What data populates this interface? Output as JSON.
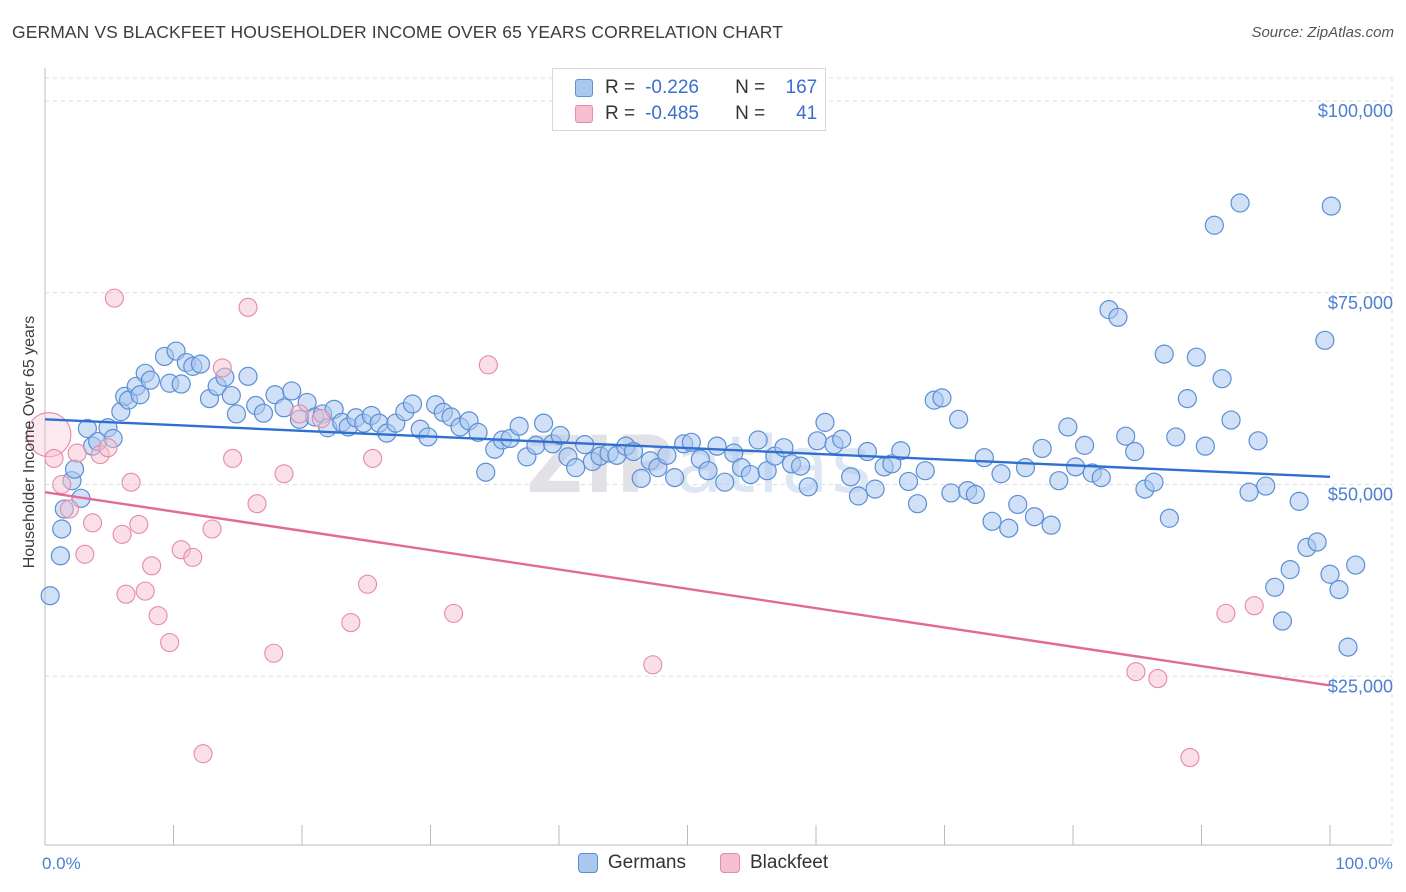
{
  "title": "GERMAN VS BLACKFEET HOUSEHOLDER INCOME OVER 65 YEARS CORRELATION CHART",
  "source": "Source: ZipAtlas.com",
  "watermark": "ZIPatlas",
  "colors": {
    "german_fill": "#a9c7ef",
    "german_stroke": "#5b8fd6",
    "german_line": "#2f6fcf",
    "blackfeet_fill": "#f6bfd0",
    "blackfeet_stroke": "#e58aa8",
    "blackfeet_line": "#e26a96",
    "tick_label": "#4a7fd1",
    "grid": "#dddddd"
  },
  "legend": {
    "rows": [
      {
        "r_label": "R =",
        "r_value": "-0.226",
        "n_label": "N =",
        "n_value": "167"
      },
      {
        "r_label": "R =",
        "r_value": "-0.485",
        "n_label": "N =",
        "n_value": "41"
      }
    ]
  },
  "bottom_legend": [
    "Germans",
    "Blackfeet"
  ],
  "chart_data": {
    "type": "scatter",
    "title": "GERMAN VS BLACKFEET HOUSEHOLDER INCOME OVER 65 YEARS CORRELATION CHART",
    "xlabel": "",
    "ylabel": "Householder Income Over 65 years",
    "xlim": [
      0,
      100
    ],
    "ylim": [
      3000,
      103000
    ],
    "x_tick_labels": [
      "0.0%",
      "100.0%"
    ],
    "y_ticks": [
      25000,
      50000,
      75000,
      100000
    ],
    "y_tick_labels": [
      "$25,000",
      "$50,000",
      "$75,000",
      "$100,000"
    ],
    "grid": true,
    "legend_position": "top-center",
    "series": [
      {
        "name": "Germans",
        "r": -0.226,
        "n": 167,
        "trend": {
          "x": [
            0,
            100
          ],
          "y": [
            58500,
            51000
          ]
        },
        "points": [
          [
            0.4,
            35500
          ],
          [
            1.2,
            40700
          ],
          [
            1.3,
            44200
          ],
          [
            1.5,
            46800
          ],
          [
            2.1,
            50500
          ],
          [
            2.3,
            52000
          ],
          [
            2.8,
            48200
          ],
          [
            3.3,
            57300
          ],
          [
            3.7,
            55000
          ],
          [
            4.1,
            55600
          ],
          [
            4.9,
            57400
          ],
          [
            5.3,
            56000
          ],
          [
            5.9,
            59500
          ],
          [
            6.2,
            61500
          ],
          [
            6.5,
            61000
          ],
          [
            7.1,
            62800
          ],
          [
            7.4,
            61700
          ],
          [
            7.8,
            64500
          ],
          [
            8.2,
            63600
          ],
          [
            9.3,
            66700
          ],
          [
            9.7,
            63200
          ],
          [
            10.2,
            67400
          ],
          [
            10.6,
            63100
          ],
          [
            11.0,
            65900
          ],
          [
            11.5,
            65400
          ],
          [
            12.1,
            65700
          ],
          [
            12.8,
            61200
          ],
          [
            13.4,
            62800
          ],
          [
            14.0,
            64000
          ],
          [
            14.5,
            61600
          ],
          [
            14.9,
            59200
          ],
          [
            15.8,
            64100
          ],
          [
            16.4,
            60300
          ],
          [
            17.0,
            59300
          ],
          [
            17.9,
            61700
          ],
          [
            18.6,
            60000
          ],
          [
            19.2,
            62200
          ],
          [
            19.8,
            58500
          ],
          [
            20.4,
            60700
          ],
          [
            21.0,
            58800
          ],
          [
            21.6,
            59200
          ],
          [
            22.0,
            57400
          ],
          [
            22.5,
            59800
          ],
          [
            23.1,
            58100
          ],
          [
            23.6,
            57500
          ],
          [
            24.2,
            58700
          ],
          [
            24.8,
            58000
          ],
          [
            25.4,
            59000
          ],
          [
            26.0,
            58000
          ],
          [
            26.6,
            56700
          ],
          [
            27.3,
            58000
          ],
          [
            28.0,
            59500
          ],
          [
            28.6,
            60500
          ],
          [
            29.2,
            57200
          ],
          [
            29.8,
            56200
          ],
          [
            30.4,
            60400
          ],
          [
            31.0,
            59400
          ],
          [
            31.6,
            58800
          ],
          [
            32.3,
            57500
          ],
          [
            33.0,
            58300
          ],
          [
            33.7,
            56800
          ],
          [
            34.3,
            51600
          ],
          [
            35.0,
            54600
          ],
          [
            35.6,
            55800
          ],
          [
            36.2,
            56000
          ],
          [
            36.9,
            57600
          ],
          [
            37.5,
            53600
          ],
          [
            38.2,
            55100
          ],
          [
            38.8,
            58000
          ],
          [
            39.5,
            55300
          ],
          [
            40.1,
            56400
          ],
          [
            40.7,
            53600
          ],
          [
            41.3,
            52200
          ],
          [
            42.0,
            55200
          ],
          [
            42.6,
            53000
          ],
          [
            43.2,
            53700
          ],
          [
            43.9,
            54100
          ],
          [
            44.5,
            53800
          ],
          [
            45.2,
            55000
          ],
          [
            45.8,
            54300
          ],
          [
            46.4,
            50800
          ],
          [
            47.1,
            53100
          ],
          [
            47.7,
            52200
          ],
          [
            48.4,
            53800
          ],
          [
            49.0,
            50900
          ],
          [
            49.7,
            55300
          ],
          [
            50.3,
            55500
          ],
          [
            51.0,
            53300
          ],
          [
            51.6,
            51800
          ],
          [
            52.3,
            55000
          ],
          [
            52.9,
            50300
          ],
          [
            53.6,
            54100
          ],
          [
            54.2,
            52200
          ],
          [
            54.9,
            51300
          ],
          [
            55.5,
            55800
          ],
          [
            56.2,
            51800
          ],
          [
            56.8,
            53700
          ],
          [
            57.5,
            54800
          ],
          [
            58.1,
            52700
          ],
          [
            58.8,
            52400
          ],
          [
            59.4,
            49700
          ],
          [
            60.1,
            55700
          ],
          [
            60.7,
            58100
          ],
          [
            61.4,
            55200
          ],
          [
            62.0,
            55900
          ],
          [
            62.7,
            51000
          ],
          [
            63.3,
            48500
          ],
          [
            64.0,
            54300
          ],
          [
            64.6,
            49400
          ],
          [
            65.3,
            52300
          ],
          [
            65.9,
            52700
          ],
          [
            66.6,
            54400
          ],
          [
            67.2,
            50400
          ],
          [
            67.9,
            47500
          ],
          [
            68.5,
            51800
          ],
          [
            69.2,
            61000
          ],
          [
            69.8,
            61300
          ],
          [
            70.5,
            48900
          ],
          [
            71.1,
            58500
          ],
          [
            71.8,
            49200
          ],
          [
            72.4,
            48700
          ],
          [
            73.1,
            53500
          ],
          [
            73.7,
            45200
          ],
          [
            74.4,
            51400
          ],
          [
            75.0,
            44300
          ],
          [
            75.7,
            47400
          ],
          [
            76.3,
            52200
          ],
          [
            77.0,
            45800
          ],
          [
            77.6,
            54700
          ],
          [
            78.3,
            44700
          ],
          [
            78.9,
            50500
          ],
          [
            79.6,
            57500
          ],
          [
            80.2,
            52300
          ],
          [
            80.9,
            55100
          ],
          [
            81.5,
            51500
          ],
          [
            82.2,
            50900
          ],
          [
            82.8,
            72800
          ],
          [
            83.5,
            71800
          ],
          [
            84.1,
            56300
          ],
          [
            84.8,
            54300
          ],
          [
            85.6,
            49400
          ],
          [
            86.3,
            50300
          ],
          [
            87.1,
            67000
          ],
          [
            87.5,
            45600
          ],
          [
            88.0,
            56200
          ],
          [
            88.9,
            61200
          ],
          [
            89.6,
            66600
          ],
          [
            90.3,
            55000
          ],
          [
            91.0,
            83800
          ],
          [
            91.6,
            63800
          ],
          [
            92.3,
            58400
          ],
          [
            93.0,
            86700
          ],
          [
            93.7,
            49000
          ],
          [
            94.4,
            55700
          ],
          [
            95.0,
            49800
          ],
          [
            95.7,
            36600
          ],
          [
            96.3,
            32200
          ],
          [
            96.9,
            38900
          ],
          [
            97.6,
            47800
          ],
          [
            98.2,
            41800
          ],
          [
            99.0,
            42500
          ],
          [
            99.6,
            68800
          ],
          [
            100.0,
            38300
          ],
          [
            100.7,
            36300
          ],
          [
            101.4,
            28800
          ],
          [
            102.0,
            39500
          ],
          [
            100.1,
            86300
          ]
        ]
      },
      {
        "name": "Blackfeet",
        "r": -0.485,
        "n": 41,
        "trend": {
          "x": [
            0,
            100
          ],
          "y": [
            49000,
            23800
          ]
        },
        "points": [
          [
            0.3,
            56500
          ],
          [
            0.7,
            53400
          ],
          [
            1.3,
            50000
          ],
          [
            1.9,
            46800
          ],
          [
            2.5,
            54100
          ],
          [
            3.1,
            40900
          ],
          [
            3.7,
            45000
          ],
          [
            4.3,
            53900
          ],
          [
            4.9,
            54800
          ],
          [
            5.4,
            74300
          ],
          [
            6.0,
            43500
          ],
          [
            6.3,
            35700
          ],
          [
            6.7,
            50300
          ],
          [
            7.3,
            44800
          ],
          [
            7.8,
            36100
          ],
          [
            8.3,
            39400
          ],
          [
            8.8,
            32900
          ],
          [
            9.7,
            29400
          ],
          [
            10.6,
            41500
          ],
          [
            11.5,
            40500
          ],
          [
            12.3,
            14900
          ],
          [
            13.0,
            44200
          ],
          [
            13.8,
            65200
          ],
          [
            14.6,
            53400
          ],
          [
            15.8,
            73100
          ],
          [
            16.5,
            47500
          ],
          [
            17.8,
            28000
          ],
          [
            18.6,
            51400
          ],
          [
            19.8,
            59200
          ],
          [
            21.5,
            58600
          ],
          [
            23.8,
            32000
          ],
          [
            25.1,
            37000
          ],
          [
            25.5,
            53400
          ],
          [
            31.8,
            33200
          ],
          [
            34.5,
            65600
          ],
          [
            47.3,
            26500
          ],
          [
            84.9,
            25600
          ],
          [
            86.6,
            24700
          ],
          [
            89.1,
            14400
          ],
          [
            91.9,
            33200
          ],
          [
            94.1,
            34200
          ]
        ]
      }
    ]
  }
}
